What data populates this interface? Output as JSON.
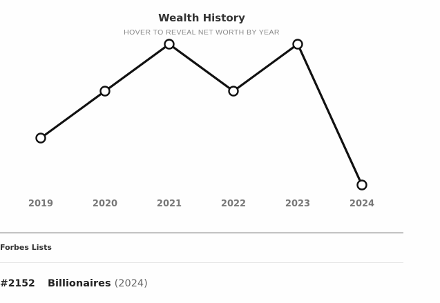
{
  "chart": {
    "title": "Wealth History",
    "subtitle": "HOVER TO REVEAL NET WORTH BY YEAR"
  },
  "chart_data": {
    "type": "line",
    "x": [
      "2019",
      "2020",
      "2021",
      "2022",
      "2023",
      "2024"
    ],
    "relative_levels": [
      0.5,
      0.25,
      0.0,
      0.25,
      0.0,
      0.75
    ],
    "line_color": "#111111",
    "marker_fill": "#ffffff",
    "grid": false,
    "legend": "none"
  },
  "forbes_lists": {
    "heading": "Forbes Lists",
    "items": [
      {
        "rank": "#2152",
        "name": "Billionaires",
        "year": "(2024)"
      }
    ]
  }
}
